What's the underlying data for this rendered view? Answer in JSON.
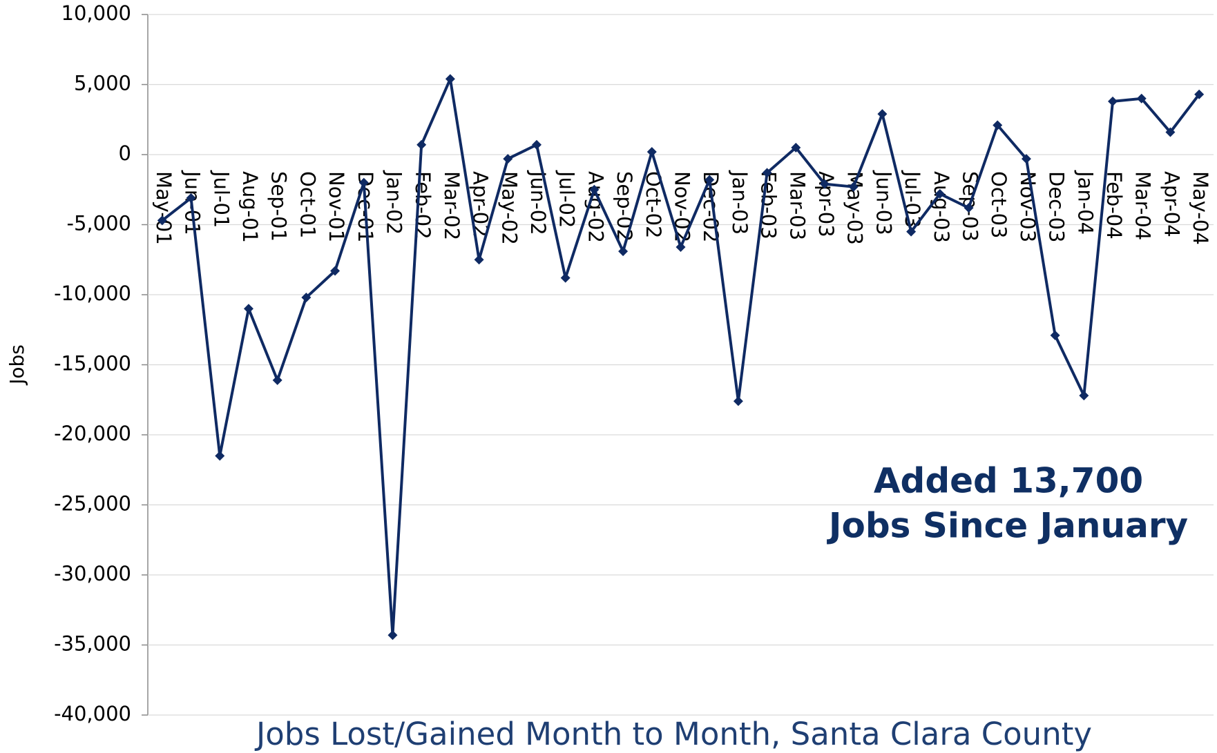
{
  "chart_data": {
    "type": "line",
    "title": "Jobs Lost/Gained Month to Month, Santa Clara County",
    "y_label": "Jobs",
    "annotation": [
      "Added 13,700",
      "Jobs Since January"
    ],
    "categories": [
      "May-01",
      "Jun-01",
      "Jul-01",
      "Aug-01",
      "Sep-01",
      "Oct-01",
      "Nov-01",
      "Dec-01",
      "Jan-02",
      "Feb-02",
      "Mar-02",
      "Apr-02",
      "May-02",
      "Jun-02",
      "Jul-02",
      "Aug-02",
      "Sep-02",
      "Oct-02",
      "Nov-02",
      "Dec-02",
      "Jan-03",
      "Feb-03",
      "Mar-03",
      "Apr-03",
      "May-03",
      "Jun-03",
      "Jul-03",
      "Aug-03",
      "Sep-03",
      "Oct-03",
      "Nov-03",
      "Dec-03",
      "Jan-04",
      "Feb-04",
      "Mar-04",
      "Apr-04",
      "May-04"
    ],
    "values": [
      -4700,
      -3100,
      -21500,
      -11000,
      -16100,
      -10200,
      -8300,
      -2000,
      -34300,
      700,
      5400,
      -7500,
      -300,
      700,
      -8800,
      -2500,
      -6900,
      200,
      -6600,
      -1800,
      -17600,
      -1300,
      500,
      -2100,
      -2300,
      2900,
      -5500,
      -2800,
      -3800,
      2100,
      -300,
      -12900,
      -17200,
      3800,
      4000,
      1600,
      4300
    ],
    "color": "#0f2a63",
    "ylim": [
      -40000,
      10000
    ],
    "yticks": [
      {
        "value": -40000,
        "label": "-40,000"
      },
      {
        "value": -35000,
        "label": "-35,000"
      },
      {
        "value": -30000,
        "label": "-30,000"
      },
      {
        "value": -25000,
        "label": "-25,000"
      },
      {
        "value": -20000,
        "label": "-20,000"
      },
      {
        "value": -15000,
        "label": "-15,000"
      },
      {
        "value": -10000,
        "label": "-10,000"
      },
      {
        "value": -5000,
        "label": "-5,000"
      },
      0,
      {
        "value": 5000,
        "label": "5,000"
      },
      {
        "value": 10000,
        "label": "10,000"
      }
    ],
    "grid": true
  }
}
